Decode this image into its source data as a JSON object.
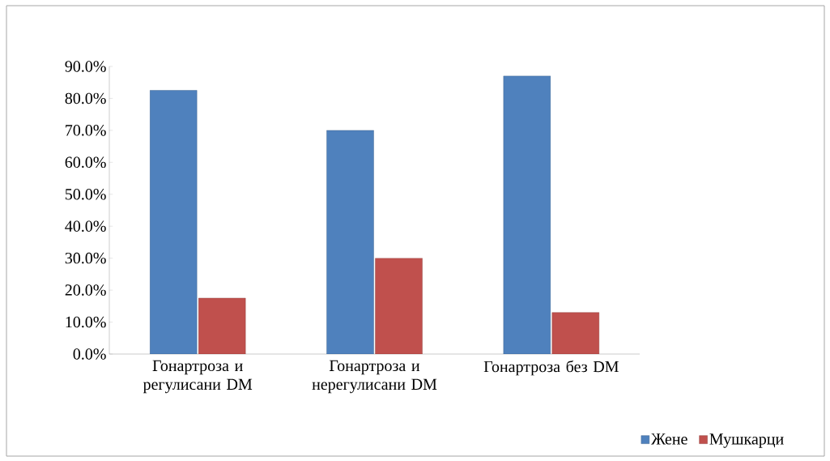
{
  "chart_data": {
    "type": "bar",
    "categories": [
      "Гонартроза и регулисани DM",
      "Гонартроза и нерегулисани DM",
      "Гонартроза без DM"
    ],
    "series": [
      {
        "name": "Жене",
        "color": "#4f81bd",
        "values": [
          82.5,
          70.0,
          87.0
        ]
      },
      {
        "name": "Мушкарци",
        "color": "#c0504d",
        "values": [
          17.5,
          30.0,
          13.0
        ]
      }
    ],
    "ylim": [
      0,
      90
    ],
    "yticks": [
      {
        "value": 0,
        "label": "0.0%"
      },
      {
        "value": 10,
        "label": "10.0%"
      },
      {
        "value": 20,
        "label": "20.0%"
      },
      {
        "value": 30,
        "label": "30.0%"
      },
      {
        "value": 40,
        "label": "40.0%"
      },
      {
        "value": 50,
        "label": "50.0%"
      },
      {
        "value": 60,
        "label": "60.0%"
      },
      {
        "value": 70,
        "label": "70.0%"
      },
      {
        "value": 80,
        "label": "80.0%"
      },
      {
        "value": 90,
        "label": "90.0%"
      }
    ],
    "legend": "bottom right"
  }
}
